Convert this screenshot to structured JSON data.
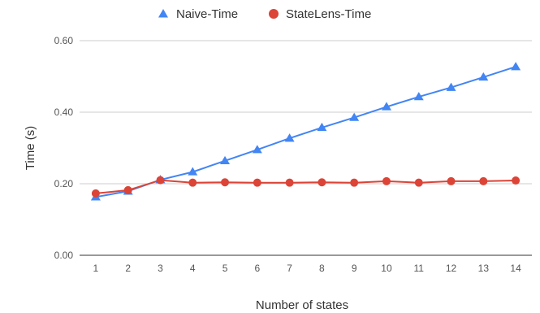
{
  "chart_data": {
    "type": "line",
    "title": "",
    "xlabel": "Number of states",
    "ylabel": "Time (s)",
    "x": [
      1,
      2,
      3,
      4,
      5,
      6,
      7,
      8,
      9,
      10,
      11,
      12,
      13,
      14
    ],
    "ylim": [
      0,
      0.6
    ],
    "yticks": [
      "0.00",
      "0.20",
      "0.40",
      "0.60"
    ],
    "grid": true,
    "legend": "top-center",
    "series": [
      {
        "name": "Naive-Time",
        "color": "#4285f4",
        "marker": "triangle",
        "values": [
          0.163,
          0.179,
          0.211,
          0.233,
          0.264,
          0.295,
          0.327,
          0.357,
          0.385,
          0.415,
          0.443,
          0.469,
          0.498,
          0.527
        ]
      },
      {
        "name": "StateLens-Time",
        "color": "#db4437",
        "marker": "circle",
        "values": [
          0.173,
          0.182,
          0.21,
          0.203,
          0.204,
          0.203,
          0.203,
          0.204,
          0.203,
          0.207,
          0.203,
          0.207,
          0.207,
          0.209
        ]
      }
    ]
  }
}
